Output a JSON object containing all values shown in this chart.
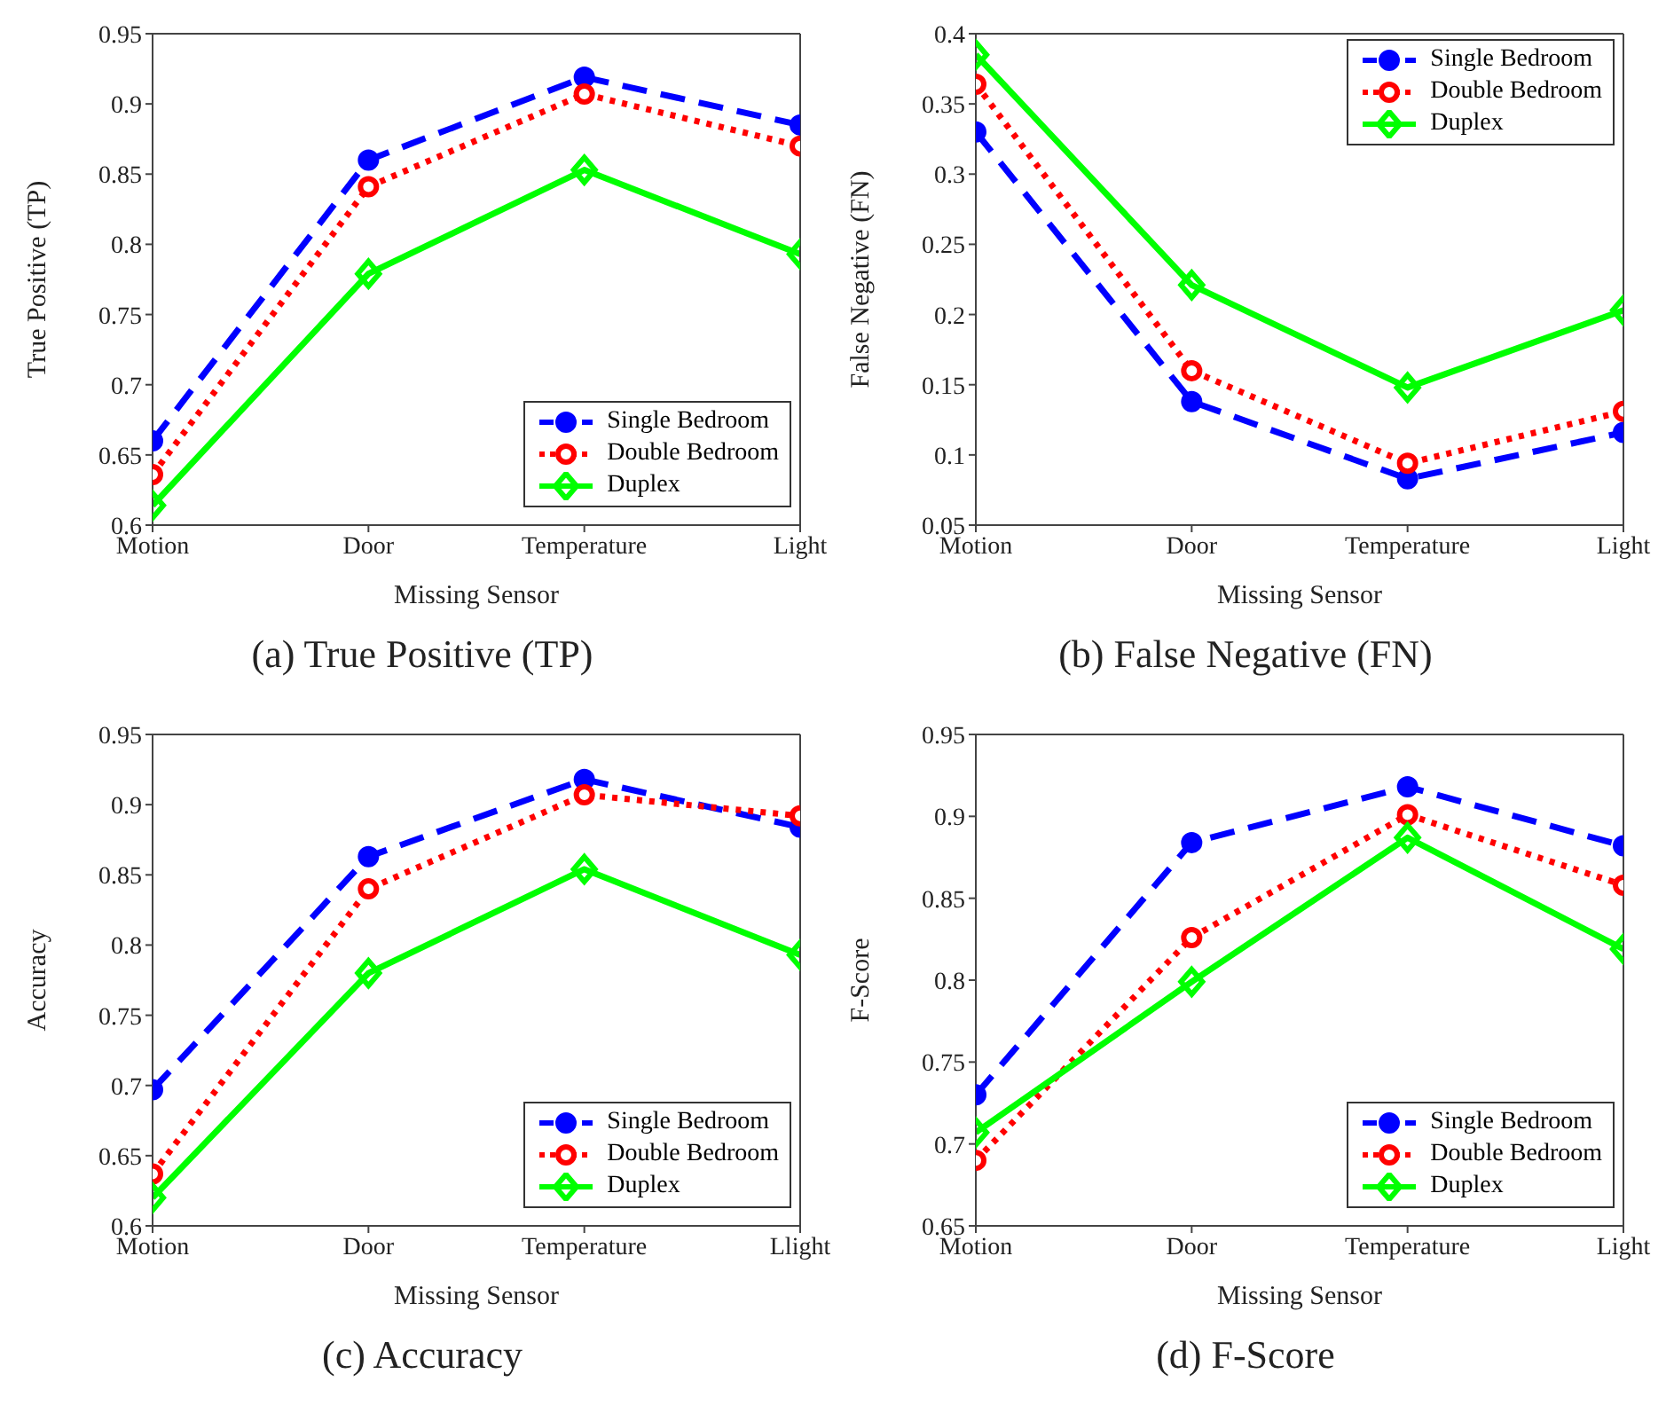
{
  "chart_data": [
    {
      "type": "line",
      "title": "(a) True Positive (TP)",
      "xlabel": "Missing Sensor",
      "ylabel": "True Positive (TP)",
      "categories": [
        "Motion",
        "Door",
        "Temperature",
        "Light"
      ],
      "ylim": [
        0.6,
        0.95
      ],
      "yticks": [
        0.6,
        0.65,
        0.7,
        0.75,
        0.8,
        0.85,
        0.9,
        0.95
      ],
      "grid": false,
      "legend": "bottom right",
      "series": [
        {
          "name": "Single Bedroom",
          "color": "#0000ff",
          "marker": "circle",
          "line_style": "dashed",
          "values": [
            0.66,
            0.86,
            0.919,
            0.885
          ]
        },
        {
          "name": "Double Bedroom",
          "color": "#ff0000",
          "marker": "circle",
          "line_style": "dotted",
          "values": [
            0.636,
            0.841,
            0.907,
            0.87
          ]
        },
        {
          "name": "Duplex",
          "color": "#00ff00",
          "marker": "diamond",
          "line_style": "solid",
          "values": [
            0.614,
            0.779,
            0.853,
            0.793
          ]
        }
      ]
    },
    {
      "type": "line",
      "title": "(b) False Negative (FN)",
      "xlabel": "Missing Sensor",
      "ylabel": "False Negative (FN)",
      "categories": [
        "Motion",
        "Door",
        "Temperature",
        "Light"
      ],
      "ylim": [
        0.05,
        0.4
      ],
      "yticks": [
        0.05,
        0.1,
        0.15,
        0.2,
        0.25,
        0.3,
        0.35,
        0.4
      ],
      "grid": false,
      "legend": "top right",
      "series": [
        {
          "name": "Single Bedroom",
          "color": "#0000ff",
          "marker": "circle",
          "line_style": "dashed",
          "values": [
            0.33,
            0.138,
            0.083,
            0.116
          ]
        },
        {
          "name": "Double Bedroom",
          "color": "#ff0000",
          "marker": "circle",
          "line_style": "dotted",
          "values": [
            0.364,
            0.16,
            0.094,
            0.131
          ]
        },
        {
          "name": "Duplex",
          "color": "#00ff00",
          "marker": "diamond",
          "line_style": "solid",
          "values": [
            0.385,
            0.221,
            0.148,
            0.203
          ]
        }
      ]
    },
    {
      "type": "line",
      "title": "(c) Accuracy",
      "xlabel": "Missing Sensor",
      "ylabel": "Accuracy",
      "categories": [
        "Motion",
        "Door",
        "Temperature",
        "Llight"
      ],
      "ylim": [
        0.6,
        0.95
      ],
      "yticks": [
        0.6,
        0.65,
        0.7,
        0.75,
        0.8,
        0.85,
        0.9,
        0.95
      ],
      "grid": false,
      "legend": "bottom right",
      "series": [
        {
          "name": "Single Bedroom",
          "color": "#0000ff",
          "marker": "circle",
          "line_style": "dashed",
          "values": [
            0.697,
            0.863,
            0.918,
            0.884
          ]
        },
        {
          "name": "Double Bedroom",
          "color": "#ff0000",
          "marker": "circle",
          "line_style": "dotted",
          "values": [
            0.637,
            0.84,
            0.907,
            0.892
          ]
        },
        {
          "name": "Duplex",
          "color": "#00ff00",
          "marker": "diamond",
          "line_style": "solid",
          "values": [
            0.62,
            0.78,
            0.854,
            0.793
          ]
        }
      ]
    },
    {
      "type": "line",
      "title": "(d) F-Score",
      "xlabel": "Missing Sensor",
      "ylabel": "F-Score",
      "categories": [
        "Motion",
        "Door",
        "Temperature",
        "Light"
      ],
      "ylim": [
        0.65,
        0.95
      ],
      "yticks": [
        0.65,
        0.7,
        0.75,
        0.8,
        0.85,
        0.9,
        0.95
      ],
      "grid": false,
      "legend": "bottom right",
      "series": [
        {
          "name": "Single Bedroom",
          "color": "#0000ff",
          "marker": "circle",
          "line_style": "dashed",
          "values": [
            0.73,
            0.884,
            0.918,
            0.882
          ]
        },
        {
          "name": "Double Bedroom",
          "color": "#ff0000",
          "marker": "circle",
          "line_style": "dotted",
          "values": [
            0.69,
            0.826,
            0.901,
            0.858
          ]
        },
        {
          "name": "Duplex",
          "color": "#00ff00",
          "marker": "diamond",
          "line_style": "solid",
          "values": [
            0.707,
            0.799,
            0.887,
            0.819
          ]
        }
      ]
    }
  ]
}
